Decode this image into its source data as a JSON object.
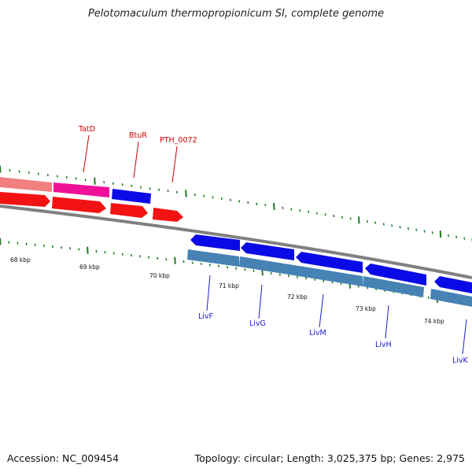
{
  "title": "Pelotomaculum thermopropionicum SI, complete genome",
  "accession_text": "Accession: NC_009454",
  "summary_text": "Topology: circular; Length: 3,025,375 bp; Genes: 2,975",
  "colors": {
    "pink": "#f08080",
    "magenta": "#ee1197",
    "blue": "#0a0ae6",
    "red": "#f21212",
    "steel": "#4682b4",
    "backbone": "#808080",
    "tick": "#1f7a1f",
    "label_red": "#cc0000",
    "label_blue": "#1a1acc"
  },
  "genes_top": [
    {
      "name": "TatD",
      "color": "magenta"
    },
    {
      "name": "BtuR",
      "color": "blue"
    },
    {
      "name": "PTH_0072",
      "color": "red"
    }
  ],
  "genes_bottom": [
    {
      "name": "LivF",
      "color": "steel"
    },
    {
      "name": "LivG",
      "color": "steel"
    },
    {
      "name": "LivM",
      "color": "steel"
    },
    {
      "name": "LivH",
      "color": "steel"
    },
    {
      "name": "LivK",
      "color": "steel"
    }
  ],
  "kbp_labels": [
    "68 kbp",
    "69 kbp",
    "70 kbp",
    "71 kbp",
    "72 kbp",
    "73 kbp",
    "74 kbp"
  ]
}
